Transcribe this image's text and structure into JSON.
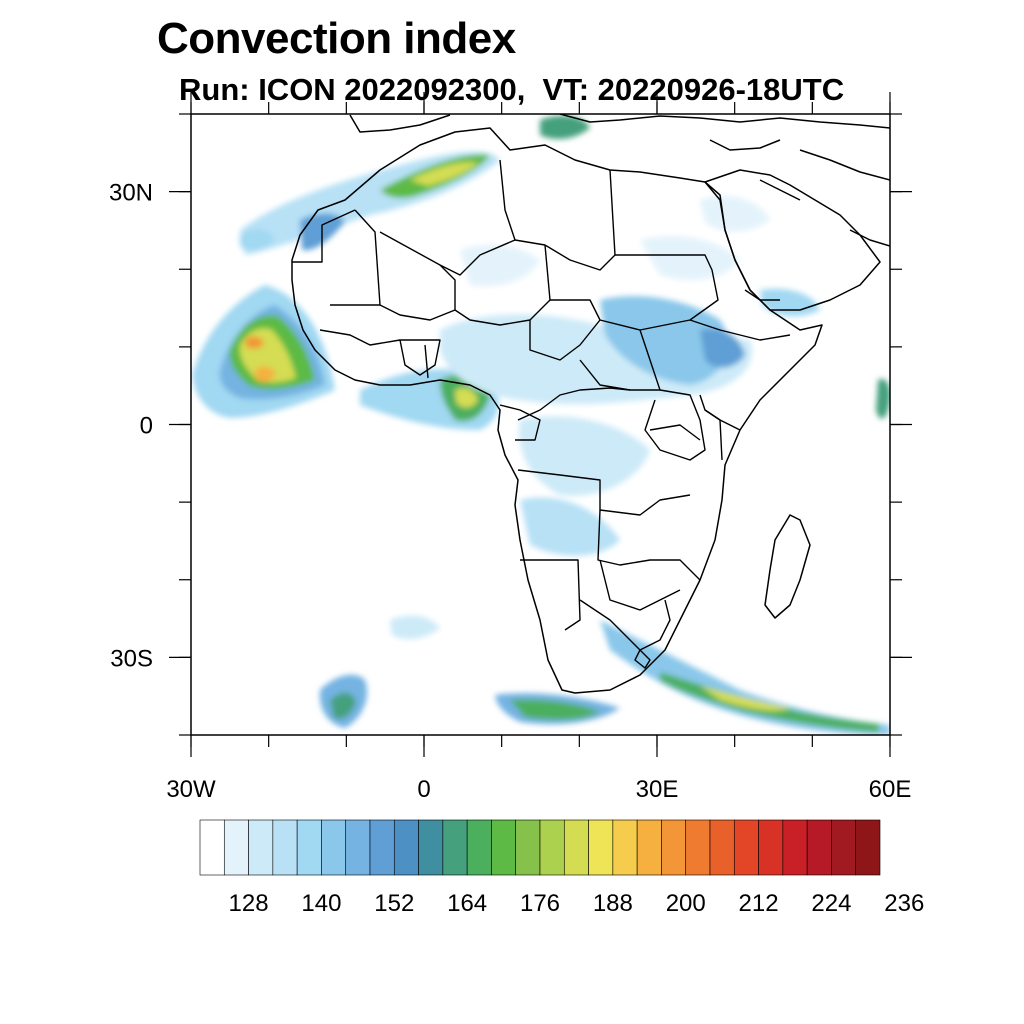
{
  "title": "Convection index",
  "subtitle": "Run: ICON 2022092300,  VT: 20220926-18UTC",
  "axes": {
    "lon_ticks": [
      {
        "lon": -30,
        "label": "30W"
      },
      {
        "lon": 0,
        "label": "0"
      },
      {
        "lon": 30,
        "label": "30E"
      },
      {
        "lon": 60,
        "label": "60E"
      }
    ],
    "lat_ticks": [
      {
        "lat": 30,
        "label": "30N"
      },
      {
        "lat": 0,
        "label": "0"
      },
      {
        "lat": -30,
        "label": "30S"
      }
    ],
    "lon_range": [
      -30,
      60
    ],
    "lat_range": [
      -40,
      40
    ]
  },
  "colorbar": {
    "colors": [
      "#ffffff",
      "#e4f3fb",
      "#cdeaf8",
      "#b8e1f6",
      "#a1d8f2",
      "#8ac7ea",
      "#75b3e2",
      "#5f9fd5",
      "#4d90c4",
      "#3f8fa0",
      "#45a07e",
      "#4caf5e",
      "#5cba45",
      "#86c24b",
      "#acd14e",
      "#d4dd52",
      "#efe356",
      "#f6cc4d",
      "#f6b040",
      "#f29638",
      "#ee7b30",
      "#e8602a",
      "#e24627",
      "#d83226",
      "#c91f27",
      "#b51a26",
      "#a21a21",
      "#8e1618"
    ],
    "labels": [
      "128",
      "140",
      "152",
      "164",
      "176",
      "188",
      "200",
      "212",
      "224",
      "236"
    ]
  }
}
